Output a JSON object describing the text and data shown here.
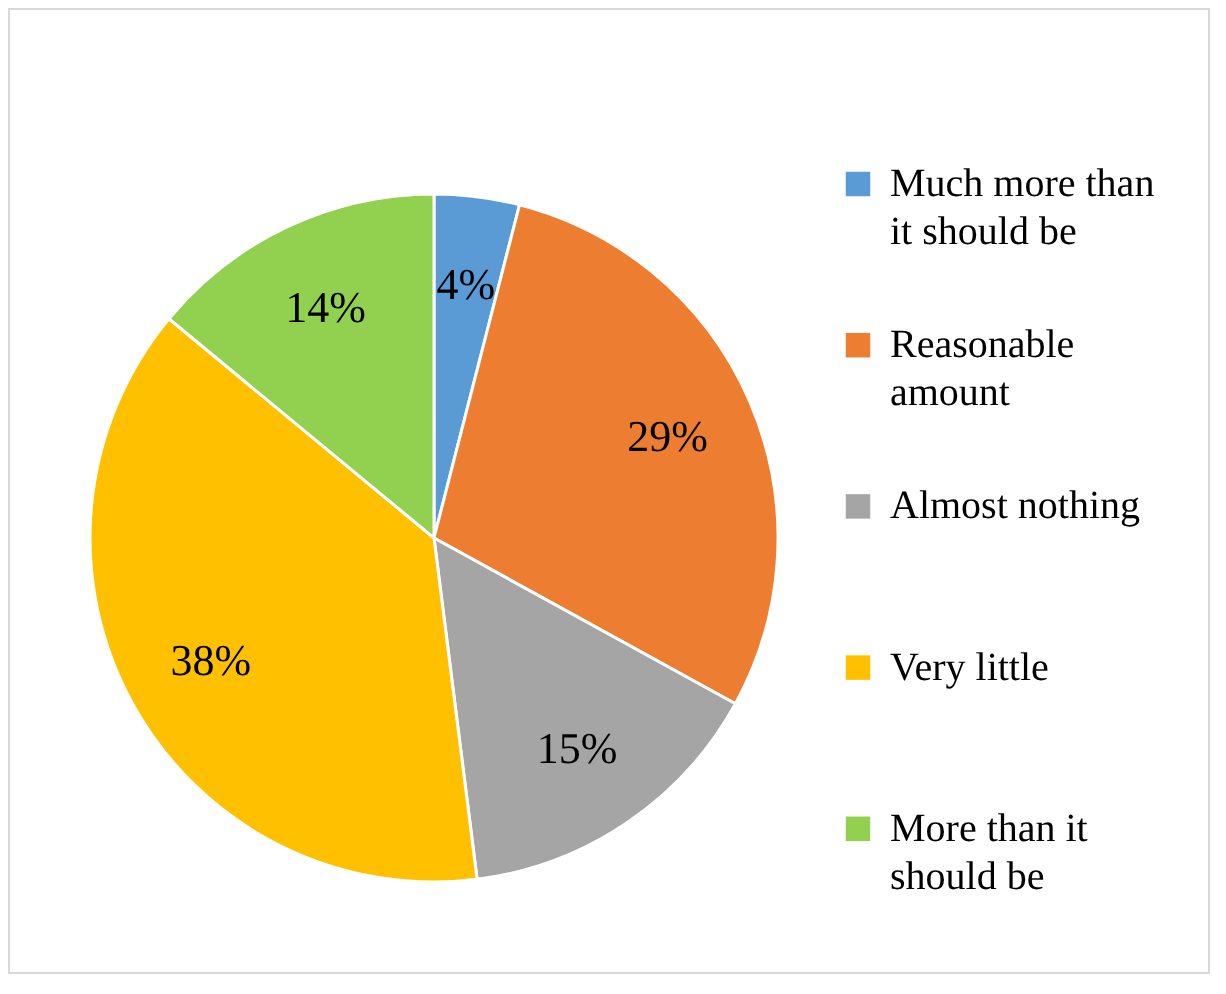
{
  "chart_data": {
    "type": "pie",
    "categories": [
      "Much more than it should be",
      "Reasonable amount",
      "Almost nothing",
      "Very little",
      "More than it should be"
    ],
    "values": [
      4,
      29,
      15,
      38,
      14
    ],
    "value_labels": [
      "4%",
      "29%",
      "15%",
      "38%",
      "14%"
    ],
    "colors": [
      "#5b9bd5",
      "#ed7d31",
      "#a5a5a5",
      "#ffc000",
      "#92d050"
    ],
    "legend": "right"
  }
}
